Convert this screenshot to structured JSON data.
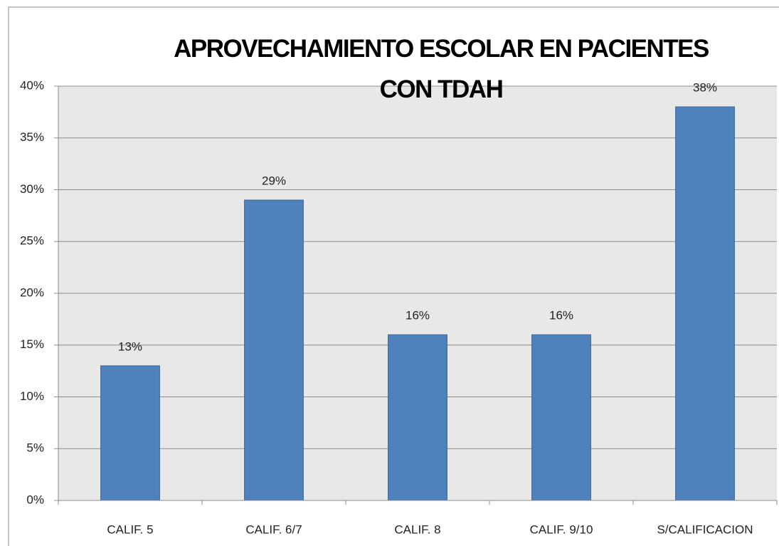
{
  "chart_data": {
    "type": "bar",
    "title": "APROVECHAMIENTO ESCOLAR EN PACIENTES CON TDAH",
    "categories": [
      "CALIF. 5",
      "CALIF. 6/7",
      "CALIF. 8",
      "CALIF. 9/10",
      "S/CALIFICACION"
    ],
    "values": [
      13,
      29,
      16,
      16,
      38
    ],
    "value_labels": [
      "13%",
      "29%",
      "16%",
      "16%",
      "38%"
    ],
    "color": "#4f81bd",
    "ylim": [
      0,
      40
    ],
    "yticks": [
      {
        "value": 0,
        "label": "0%"
      },
      {
        "value": 5,
        "label": "5%"
      },
      {
        "value": 10,
        "label": "10%"
      },
      {
        "value": 15,
        "label": "15%"
      },
      {
        "value": 20,
        "label": "20%"
      },
      {
        "value": 25,
        "label": "25%"
      },
      {
        "value": 30,
        "label": "30%"
      },
      {
        "value": 35,
        "label": "35%"
      },
      {
        "value": 40,
        "label": "40%"
      }
    ],
    "grid": true
  }
}
